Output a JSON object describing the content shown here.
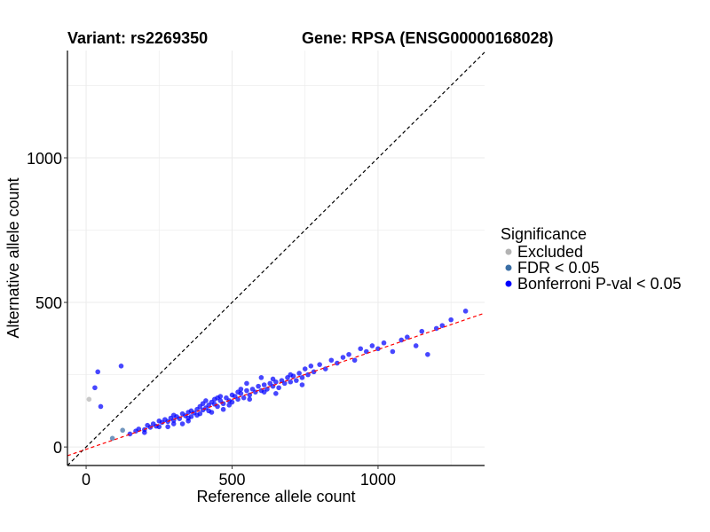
{
  "chart_data": {
    "type": "scatter",
    "title_left": "Variant: rs2269350",
    "title_right": "Gene: RPSA (ENSG00000168028)",
    "xlabel": "Reference allele count",
    "ylabel": "Alternative allele count",
    "xlim": [
      -64,
      1365
    ],
    "ylim": [
      -64,
      1371
    ],
    "xticks": [
      0,
      500,
      1000
    ],
    "yticks": [
      0,
      500,
      1000
    ],
    "grid": true,
    "legend": {
      "title": "Significance",
      "placement": "right",
      "entries": [
        {
          "label": "Excluded",
          "color": "#b3b3b3"
        },
        {
          "label": "FDR < 0.05",
          "color": "#3a6ea5"
        },
        {
          "label": "Bonferroni P-val < 0.05",
          "color": "#0000ff"
        }
      ]
    },
    "reference_lines": [
      {
        "name": "identity",
        "slope": 1,
        "intercept": 0,
        "color": "#000000"
      },
      {
        "name": "fit",
        "slope": 0.345,
        "intercept": -8,
        "color": "#ff0000"
      }
    ],
    "series": [
      {
        "name": "Excluded",
        "points": [
          [
            10,
            165
          ]
        ]
      },
      {
        "name": "FDR < 0.05",
        "points": [
          [
            90,
            30
          ],
          [
            125,
            58
          ]
        ]
      },
      {
        "name": "Bonferroni P-val < 0.05",
        "points": [
          [
            30,
            205
          ],
          [
            40,
            260
          ],
          [
            50,
            140
          ],
          [
            120,
            280
          ],
          [
            150,
            45
          ],
          [
            170,
            55
          ],
          [
            180,
            62
          ],
          [
            200,
            60
          ],
          [
            210,
            75
          ],
          [
            220,
            68
          ],
          [
            230,
            80
          ],
          [
            240,
            72
          ],
          [
            250,
            90
          ],
          [
            260,
            85
          ],
          [
            270,
            95
          ],
          [
            280,
            88
          ],
          [
            290,
            100
          ],
          [
            300,
            92
          ],
          [
            300,
            110
          ],
          [
            310,
            105
          ],
          [
            320,
            98
          ],
          [
            330,
            115
          ],
          [
            340,
            108
          ],
          [
            350,
            120
          ],
          [
            350,
            100
          ],
          [
            360,
            125
          ],
          [
            370,
            118
          ],
          [
            380,
            130
          ],
          [
            380,
            110
          ],
          [
            390,
            140
          ],
          [
            400,
            128
          ],
          [
            400,
            150
          ],
          [
            410,
            135
          ],
          [
            420,
            145
          ],
          [
            420,
            125
          ],
          [
            430,
            155
          ],
          [
            440,
            148
          ],
          [
            440,
            165
          ],
          [
            450,
            140
          ],
          [
            460,
            160
          ],
          [
            460,
            175
          ],
          [
            470,
            150
          ],
          [
            480,
            170
          ],
          [
            490,
            160
          ],
          [
            500,
            180
          ],
          [
            500,
            155
          ],
          [
            510,
            175
          ],
          [
            520,
            190
          ],
          [
            520,
            165
          ],
          [
            530,
            185
          ],
          [
            540,
            170
          ],
          [
            550,
            195
          ],
          [
            560,
            180
          ],
          [
            570,
            200
          ],
          [
            580,
            190
          ],
          [
            590,
            210
          ],
          [
            600,
            195
          ],
          [
            610,
            215
          ],
          [
            620,
            200
          ],
          [
            630,
            220
          ],
          [
            640,
            210
          ],
          [
            650,
            225
          ],
          [
            660,
            205
          ],
          [
            670,
            230
          ],
          [
            680,
            220
          ],
          [
            690,
            240
          ],
          [
            700,
            225
          ],
          [
            710,
            245
          ],
          [
            720,
            230
          ],
          [
            730,
            255
          ],
          [
            740,
            240
          ],
          [
            750,
            270
          ],
          [
            760,
            250
          ],
          [
            770,
            280
          ],
          [
            780,
            260
          ],
          [
            800,
            285
          ],
          [
            820,
            270
          ],
          [
            840,
            300
          ],
          [
            860,
            290
          ],
          [
            880,
            310
          ],
          [
            900,
            320
          ],
          [
            920,
            300
          ],
          [
            940,
            340
          ],
          [
            960,
            330
          ],
          [
            980,
            350
          ],
          [
            1000,
            340
          ],
          [
            1020,
            360
          ],
          [
            1050,
            330
          ],
          [
            1080,
            370
          ],
          [
            1100,
            380
          ],
          [
            1130,
            350
          ],
          [
            1150,
            400
          ],
          [
            1170,
            320
          ],
          [
            1200,
            410
          ],
          [
            1220,
            420
          ],
          [
            1250,
            440
          ],
          [
            1300,
            470
          ],
          [
            470,
            130
          ],
          [
            430,
            120
          ],
          [
            350,
            90
          ],
          [
            550,
            220
          ],
          [
            600,
            240
          ],
          [
            650,
            185
          ],
          [
            280,
            70
          ],
          [
            330,
            80
          ],
          [
            390,
            115
          ],
          [
            410,
            160
          ],
          [
            450,
            170
          ],
          [
            490,
            145
          ],
          [
            530,
            200
          ],
          [
            560,
            165
          ],
          [
            610,
            190
          ],
          [
            640,
            235
          ],
          [
            700,
            250
          ],
          [
            740,
            215
          ],
          [
            360,
            105
          ],
          [
            300,
            80
          ],
          [
            250,
            70
          ],
          [
            200,
            50
          ]
        ]
      }
    ]
  }
}
